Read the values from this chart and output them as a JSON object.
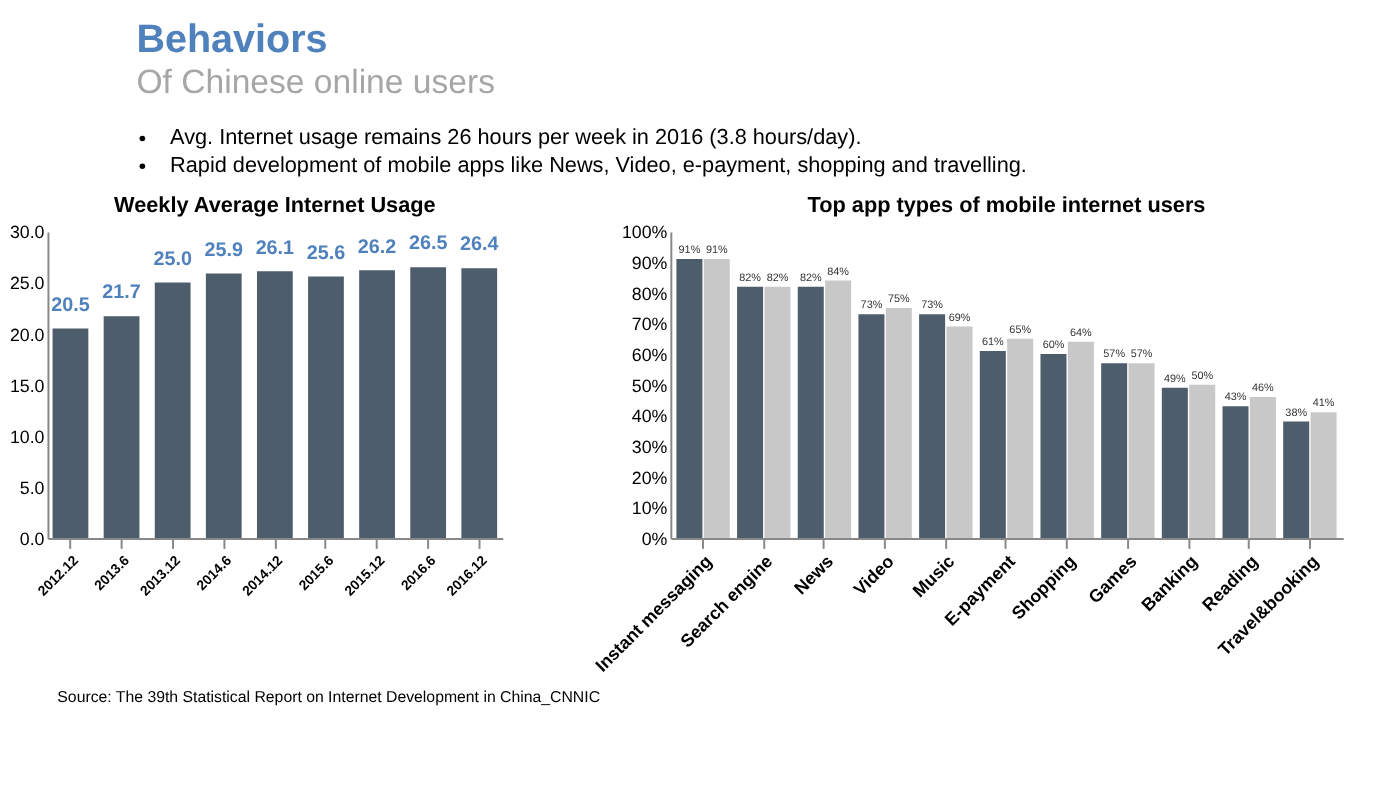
{
  "chart_data": [
    {
      "type": "other",
      "title": "Behaviors",
      "subtitle": "Of Chinese online users",
      "annotations": [
        "Avg. Internet usage remains 26 hours per week in 2016 (3.8 hours/day).",
        "Rapid development of mobile apps like News, Video, e-payment, shopping and travelling."
      ]
    },
    {
      "type": "bar",
      "title": "Weekly Average Internet Usage",
      "categories": [
        "2012.12",
        "2013.6",
        "2013.12",
        "2014.6",
        "2014.12",
        "2015.6",
        "2015.12",
        "2016.6",
        "2016.12"
      ],
      "values": [
        20.5,
        21.7,
        25.0,
        25.9,
        26.1,
        25.6,
        26.2,
        26.5,
        26.4
      ],
      "value_labels": [
        "20.5",
        "21.7",
        "25.0",
        "25.9",
        "26.1",
        "25.6",
        "26.2",
        "26.5",
        "26.4"
      ],
      "color": "#4e5d6c",
      "ylim": [
        0,
        30
      ],
      "yticks": [
        {
          "value": 0,
          "label": "0.0"
        },
        {
          "value": 5,
          "label": "5.0"
        },
        {
          "value": 10,
          "label": "10.0"
        },
        {
          "value": 15,
          "label": "15.0"
        },
        {
          "value": 20,
          "label": "20.0"
        },
        {
          "value": 25,
          "label": "25.0"
        },
        {
          "value": 30,
          "label": "30.0"
        }
      ],
      "grid": false
    },
    {
      "type": "bar",
      "title": "Top app types of mobile internet users",
      "categories": [
        "Instant messaging",
        "Search engine",
        "News",
        "Video",
        "Music",
        "E-payment",
        "Shopping",
        "Games",
        "Banking",
        "Reading",
        "Travel&booking"
      ],
      "series": [
        {
          "color": "#4e5d6c",
          "values": [
            91,
            82,
            82,
            73,
            73,
            61,
            60,
            57,
            49,
            43,
            38
          ],
          "value_labels": [
            "91%",
            "82%",
            "82%",
            "73%",
            "73%",
            "61%",
            "60%",
            "57%",
            "49%",
            "43%",
            "38%"
          ]
        },
        {
          "color": "#c8c8c8",
          "values": [
            91,
            82,
            84,
            75,
            69,
            65,
            64,
            57,
            50,
            46,
            41
          ],
          "value_labels": [
            "91%",
            "82%",
            "84%",
            "75%",
            "69%",
            "65%",
            "64%",
            "57%",
            "50%",
            "46%",
            "41%"
          ]
        }
      ],
      "ylim": [
        0,
        100
      ],
      "yticks": [
        {
          "value": 0,
          "label": "0%"
        },
        {
          "value": 10,
          "label": "10%"
        },
        {
          "value": 20,
          "label": "20%"
        },
        {
          "value": 30,
          "label": "30%"
        },
        {
          "value": 40,
          "label": "40%"
        },
        {
          "value": 50,
          "label": "50%"
        },
        {
          "value": 60,
          "label": "60%"
        },
        {
          "value": 70,
          "label": "70%"
        },
        {
          "value": 80,
          "label": "80%"
        },
        {
          "value": 90,
          "label": "90%"
        },
        {
          "value": 100,
          "label": "100%"
        }
      ],
      "grid": false
    },
    {
      "type": "other",
      "annotations": [
        "Source:  The 39th Statistical Report on Internet Development in China_CNNIC"
      ]
    }
  ]
}
